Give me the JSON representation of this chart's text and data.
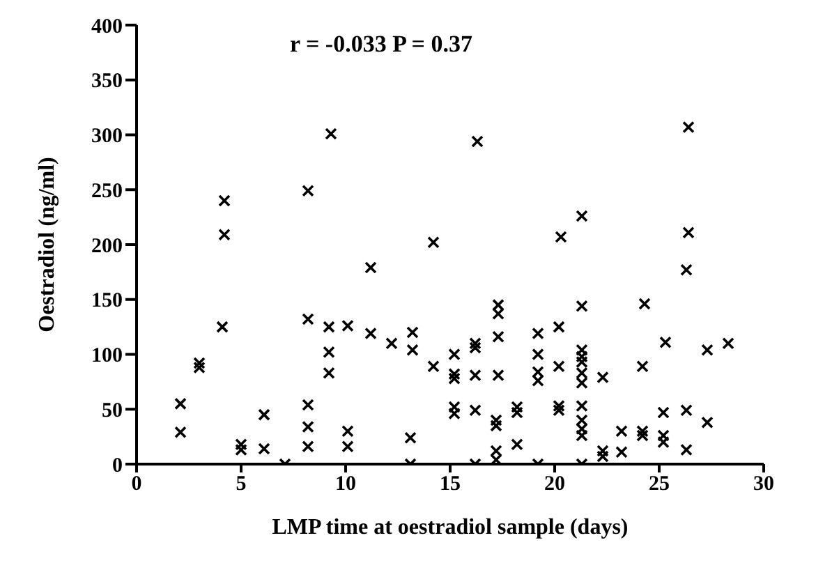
{
  "chart_data": {
    "type": "scatter",
    "xlabel": "LMP time at oestradiol sample (days)",
    "ylabel": "Oestradiol (ng/ml)",
    "annotations": [
      "r = -0.033 P = 0.37"
    ],
    "xlim": [
      0,
      30
    ],
    "xticks": [
      0,
      5,
      10,
      15,
      20,
      25,
      30
    ],
    "ylim": [
      0,
      400
    ],
    "yticks": [
      0,
      50,
      100,
      150,
      200,
      250,
      300,
      350,
      400
    ],
    "grid": false,
    "legend": false,
    "marker": "cross",
    "series": [
      {
        "color": "#000000",
        "x": [
          2.1,
          2.1,
          3.0,
          3.0,
          4.1,
          4.2,
          4.2,
          5.0,
          5.0,
          6.1,
          6.1,
          7.1,
          8.2,
          8.2,
          8.2,
          8.2,
          8.2,
          9.2,
          9.2,
          9.2,
          9.3,
          10.1,
          10.1,
          10.1,
          11.2,
          11.2,
          12.2,
          13.2,
          13.2,
          13.1,
          13.1,
          14.2,
          14.2,
          15.2,
          15.2,
          15.2,
          15.2,
          15.2,
          16.2,
          16.2,
          16.2,
          16.2,
          16.2,
          16.3,
          17.3,
          17.3,
          17.3,
          17.3,
          17.2,
          17.2,
          17.2,
          17.2,
          18.2,
          18.2,
          18.2,
          19.2,
          19.2,
          19.2,
          19.2,
          19.2,
          20.2,
          20.2,
          20.2,
          20.2,
          20.3,
          21.3,
          21.3,
          21.3,
          21.3,
          21.3,
          21.3,
          21.3,
          21.3,
          21.3,
          21.3,
          21.3,
          21.3,
          22.3,
          22.3,
          22.3,
          23.2,
          23.2,
          24.3,
          24.2,
          24.2,
          24.2,
          25.3,
          25.2,
          25.2,
          25.2,
          26.4,
          26.4,
          26.3,
          26.3,
          26.3,
          27.3,
          27.3,
          28.3
        ],
        "values": [
          55,
          29,
          92,
          88,
          125,
          209,
          240,
          18,
          13,
          45,
          14,
          0,
          249,
          132,
          54,
          34,
          16,
          125,
          102,
          83,
          301,
          126,
          30,
          16,
          179,
          119,
          110,
          120,
          104,
          24,
          0,
          89,
          202,
          100,
          82,
          78,
          52,
          46,
          110,
          106,
          81,
          49,
          0,
          294,
          145,
          137,
          116,
          81,
          40,
          35,
          12,
          4,
          52,
          47,
          18,
          0,
          119,
          100,
          84,
          76,
          125,
          89,
          53,
          49,
          207,
          226,
          144,
          104,
          98,
          93,
          83,
          74,
          53,
          40,
          32,
          26,
          0,
          79,
          12,
          7,
          30,
          11,
          146,
          89,
          30,
          26,
          111,
          47,
          26,
          20,
          307,
          211,
          177,
          49,
          13,
          104,
          38,
          110
        ]
      }
    ]
  }
}
